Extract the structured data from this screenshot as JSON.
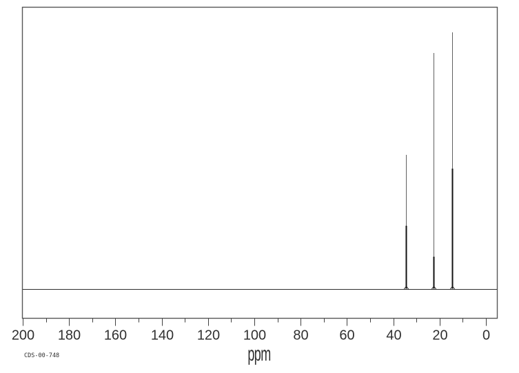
{
  "figure": {
    "sample_id": "CDS-00-748",
    "xlabel": "ppm"
  },
  "chart_data": {
    "type": "line",
    "subtype": "nmr-spectrum",
    "title": "",
    "xlabel": "ppm",
    "ylabel": "",
    "grid": false,
    "legend": false,
    "x_axis": {
      "min": 0,
      "max": 200,
      "reversed": true,
      "major_ticks": [
        200,
        180,
        160,
        140,
        120,
        100,
        80,
        60,
        40,
        20,
        0
      ],
      "minor_ticks": [
        190,
        170,
        150,
        130,
        110,
        90,
        70,
        50,
        30,
        10
      ]
    },
    "y_axis": {
      "visible": false
    },
    "baseline_intensity": 0,
    "peaks": [
      {
        "ppm": 34.4,
        "rel_intensity": 0.523,
        "secondary_rel_intensity": 0.248
      },
      {
        "ppm": 22.6,
        "rel_intensity": 0.92,
        "secondary_rel_intensity": 0.127
      },
      {
        "ppm": 14.5,
        "rel_intensity": 1.0,
        "secondary_rel_intensity": 0.47
      }
    ]
  },
  "colors": {
    "background": "#ffffff",
    "frame": "#565656",
    "peak_main": "#606060",
    "peak_dark": "#121212",
    "baseline": "#2e2e2e",
    "tick": "#404040",
    "label": "#303030"
  }
}
